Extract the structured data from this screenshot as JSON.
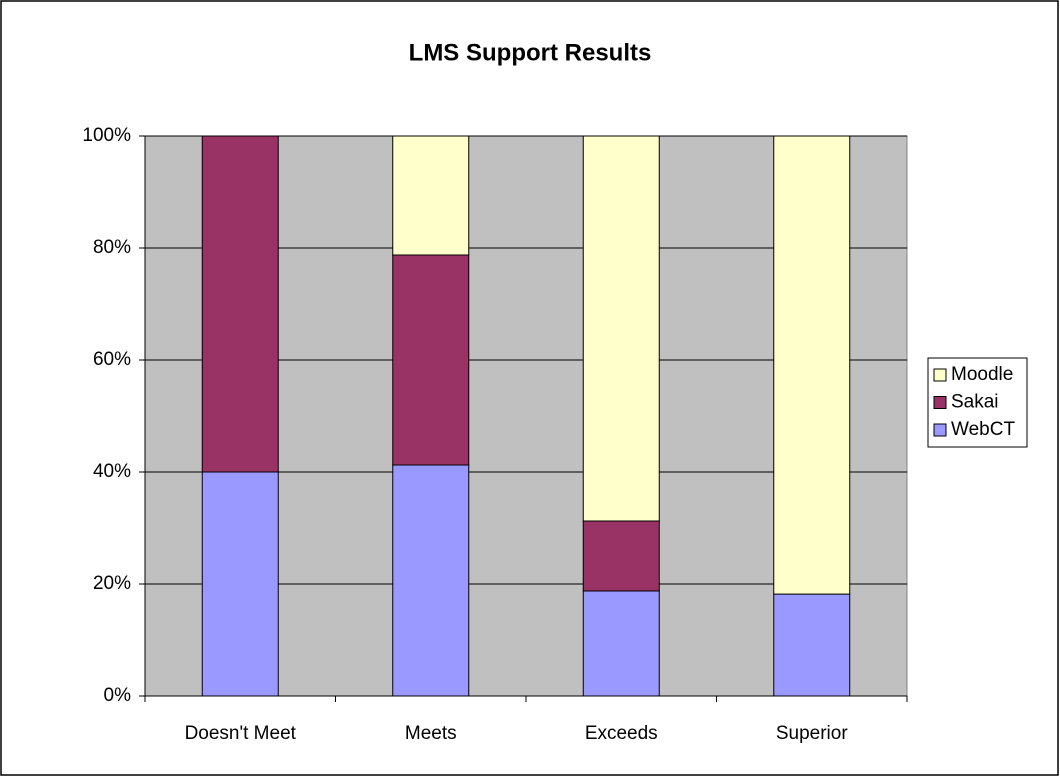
{
  "chart_data": {
    "type": "stacked-bar",
    "title": "LMS Support Results",
    "categories": [
      "Doesn't Meet",
      "Meets",
      "Exceeds",
      "Superior"
    ],
    "series": [
      {
        "name": "WebCT",
        "color": "#9999ff",
        "values": [
          40,
          41.25,
          18.75,
          18.2
        ]
      },
      {
        "name": "Sakai",
        "color": "#993366",
        "values": [
          60,
          37.5,
          12.5,
          0
        ]
      },
      {
        "name": "Moodle",
        "color": "#ffffcc",
        "values": [
          0,
          21.25,
          68.75,
          81.8
        ]
      }
    ],
    "ylim": [
      0,
      100
    ],
    "yticks": [
      {
        "value": 0,
        "label": "0%"
      },
      {
        "value": 20,
        "label": "20%"
      },
      {
        "value": 40,
        "label": "40%"
      },
      {
        "value": 60,
        "label": "60%"
      },
      {
        "value": 80,
        "label": "80%"
      },
      {
        "value": 100,
        "label": "100%"
      }
    ],
    "grid": true,
    "legend": "right",
    "plot_background": "#c0c0c0"
  }
}
